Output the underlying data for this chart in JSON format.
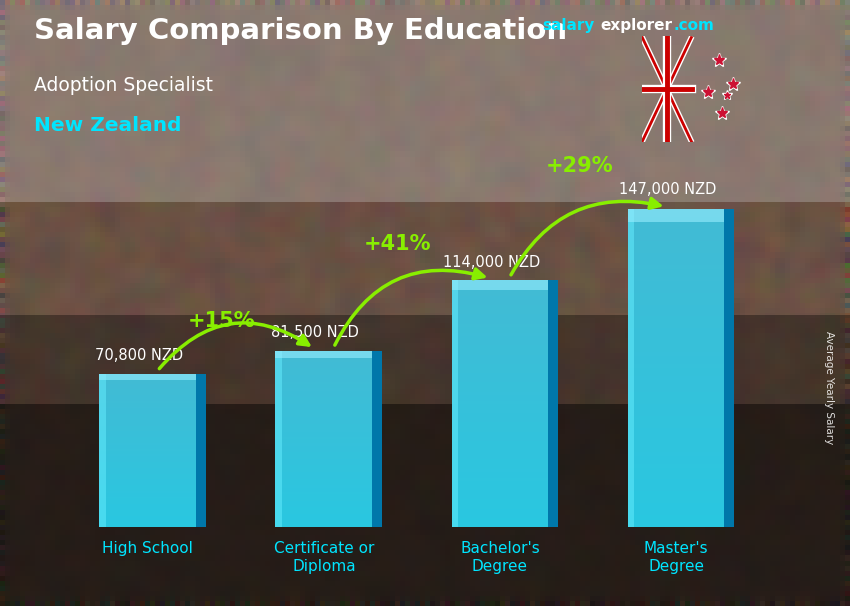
{
  "title_main": "Salary Comparison By Education",
  "title_sub": "Adoption Specialist",
  "title_country": "New Zealand",
  "categories": [
    "High School",
    "Certificate or\nDiploma",
    "Bachelor's\nDegree",
    "Master's\nDegree"
  ],
  "values": [
    70800,
    81500,
    114000,
    147000
  ],
  "labels": [
    "70,800 NZD",
    "81,500 NZD",
    "114,000 NZD",
    "147,000 NZD"
  ],
  "pct_changes": [
    "+15%",
    "+41%",
    "+29%"
  ],
  "bar_color_front": "#29c6e0",
  "bar_color_side": "#0077aa",
  "bar_color_top": "#55ddee",
  "text_white": "#ffffff",
  "text_cyan": "#00e5ff",
  "text_green": "#88ee00",
  "ylabel": "Average Yearly Salary",
  "max_val": 168000,
  "bar_width": 0.55,
  "site_salary": "salary",
  "site_explorer": "explorer",
  "site_dot_com": ".com"
}
